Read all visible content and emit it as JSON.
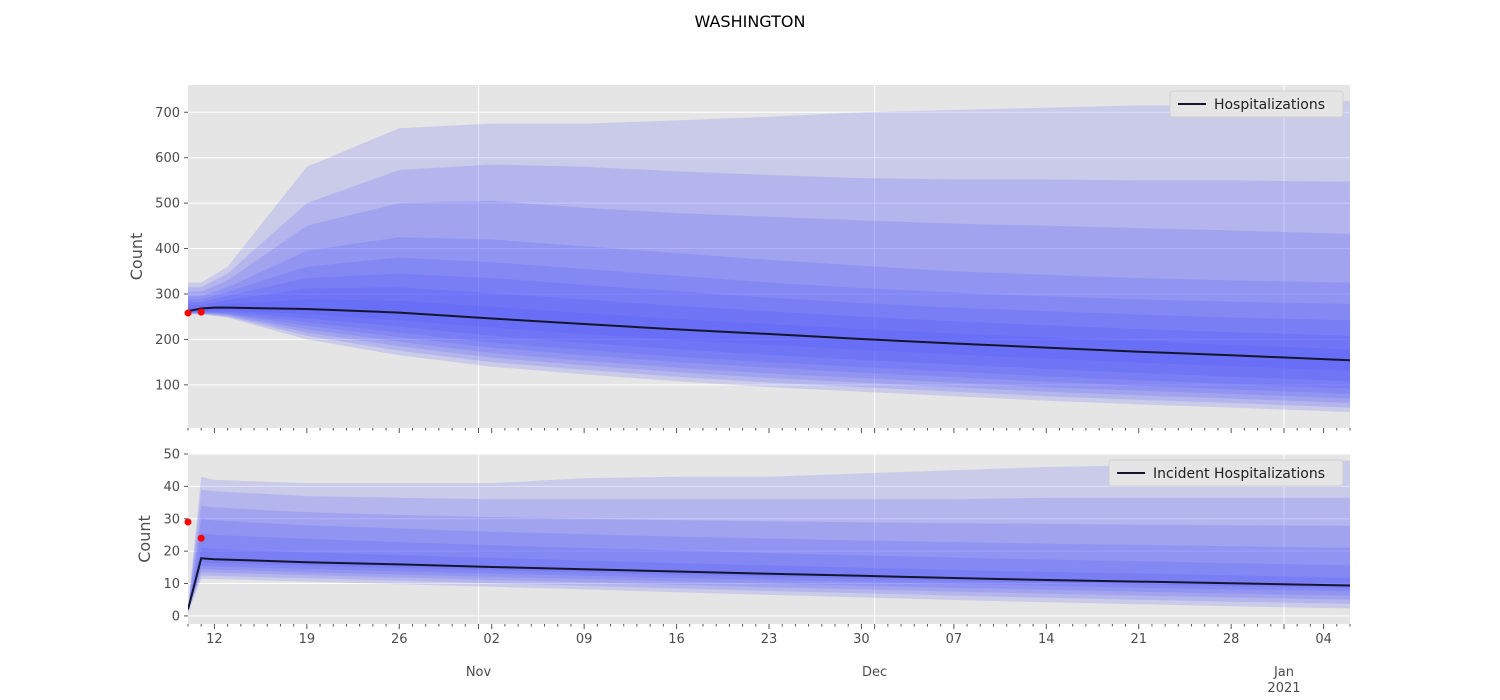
{
  "figure": {
    "title": "WASHINGTON"
  },
  "chart_data": [
    {
      "type": "area",
      "name": "hospitalizations-panel",
      "title": "",
      "xlabel": "",
      "ylabel": "Count",
      "legend": {
        "placement": "top-right",
        "entries": [
          "Hospitalizations"
        ]
      },
      "grid": true,
      "xlim": [
        "2020-10-10",
        "2021-01-06"
      ],
      "ylim": [
        5,
        760
      ],
      "yticks": [
        100,
        200,
        300,
        400,
        500,
        600,
        700
      ],
      "median": {
        "name": "Hospitalizations",
        "x": [
          "2020-10-10",
          "2020-10-11",
          "2020-10-12",
          "2020-10-13",
          "2020-10-19",
          "2020-10-26",
          "2020-11-02",
          "2020-11-09",
          "2020-11-16",
          "2020-11-23",
          "2020-11-30",
          "2020-12-07",
          "2020-12-14",
          "2020-12-21",
          "2020-12-28",
          "2021-01-06"
        ],
        "y": [
          262,
          268,
          270,
          270,
          267,
          259,
          246,
          234,
          222,
          212,
          201,
          191,
          182,
          173,
          165,
          154
        ]
      },
      "quantile_bands": [
        {
          "x": [
            "2020-10-10",
            "2020-10-11",
            "2020-10-13",
            "2020-10-19",
            "2020-10-26",
            "2020-11-02",
            "2020-11-09",
            "2020-11-16",
            "2020-11-23",
            "2020-11-30",
            "2020-12-07",
            "2020-12-14",
            "2020-12-21",
            "2020-12-28",
            "2021-01-06"
          ],
          "lower": [
            255,
            255,
            248,
            200,
            165,
            140,
            123,
            108,
            95,
            85,
            75,
            65,
            57,
            50,
            40
          ],
          "upper": [
            325,
            325,
            360,
            580,
            665,
            675,
            675,
            682,
            690,
            700,
            705,
            710,
            715,
            715,
            725
          ]
        },
        {
          "x": [
            "2020-10-10",
            "2020-10-11",
            "2020-10-13",
            "2020-10-19",
            "2020-10-26",
            "2020-11-02",
            "2020-11-09",
            "2020-11-16",
            "2020-11-23",
            "2020-11-30",
            "2020-12-07",
            "2020-12-14",
            "2020-12-21",
            "2020-12-28",
            "2021-01-06"
          ],
          "lower": [
            256,
            256,
            250,
            208,
            175,
            150,
            133,
            118,
            105,
            95,
            85,
            75,
            67,
            60,
            50
          ],
          "upper": [
            315,
            315,
            345,
            500,
            573,
            585,
            580,
            570,
            562,
            555,
            552,
            552,
            550,
            550,
            547
          ]
        },
        {
          "x": [
            "2020-10-10",
            "2020-10-11",
            "2020-10-13",
            "2020-10-19",
            "2020-10-26",
            "2020-11-02",
            "2020-11-09",
            "2020-11-16",
            "2020-11-23",
            "2020-11-30",
            "2020-12-07",
            "2020-12-14",
            "2020-12-21",
            "2020-12-28",
            "2021-01-06"
          ],
          "lower": [
            257,
            257,
            252,
            215,
            185,
            160,
            143,
            128,
            115,
            105,
            95,
            85,
            77,
            70,
            60
          ],
          "upper": [
            305,
            305,
            330,
            450,
            500,
            505,
            490,
            478,
            470,
            462,
            455,
            450,
            445,
            440,
            432
          ]
        },
        {
          "x": [
            "2020-10-10",
            "2020-10-11",
            "2020-10-13",
            "2020-10-19",
            "2020-10-26",
            "2020-11-02",
            "2020-11-09",
            "2020-11-16",
            "2020-11-23",
            "2020-11-30",
            "2020-12-07",
            "2020-12-14",
            "2020-12-21",
            "2020-12-28",
            "2021-01-06"
          ],
          "lower": [
            258,
            258,
            254,
            222,
            195,
            170,
            153,
            138,
            125,
            115,
            105,
            95,
            87,
            80,
            70
          ],
          "upper": [
            295,
            295,
            315,
            395,
            425,
            420,
            405,
            390,
            375,
            362,
            350,
            342,
            335,
            330,
            325
          ]
        },
        {
          "x": [
            "2020-10-10",
            "2020-10-11",
            "2020-10-13",
            "2020-10-19",
            "2020-10-26",
            "2020-11-02",
            "2020-11-09",
            "2020-11-16",
            "2020-11-23",
            "2020-11-30",
            "2020-12-07",
            "2020-12-14",
            "2020-12-21",
            "2020-12-28",
            "2021-01-06"
          ],
          "lower": [
            259,
            259,
            256,
            230,
            205,
            182,
            165,
            150,
            138,
            127,
            117,
            107,
            98,
            90,
            80
          ],
          "upper": [
            288,
            288,
            305,
            360,
            380,
            370,
            355,
            340,
            325,
            313,
            303,
            295,
            288,
            283,
            278
          ]
        },
        {
          "x": [
            "2020-10-10",
            "2020-10-11",
            "2020-10-13",
            "2020-10-19",
            "2020-10-26",
            "2020-11-02",
            "2020-11-09",
            "2020-11-16",
            "2020-11-23",
            "2020-11-30",
            "2020-12-07",
            "2020-12-14",
            "2020-12-21",
            "2020-12-28",
            "2021-01-06"
          ],
          "lower": [
            260,
            260,
            258,
            238,
            215,
            193,
            177,
            162,
            150,
            139,
            129,
            119,
            110,
            102,
            92
          ],
          "upper": [
            282,
            282,
            296,
            335,
            345,
            335,
            320,
            306,
            292,
            280,
            270,
            262,
            255,
            248,
            242
          ]
        },
        {
          "x": [
            "2020-10-10",
            "2020-10-11",
            "2020-10-13",
            "2020-10-19",
            "2020-10-26",
            "2020-11-02",
            "2020-11-09",
            "2020-11-16",
            "2020-11-23",
            "2020-11-30",
            "2020-12-07",
            "2020-12-14",
            "2020-12-21",
            "2020-12-28",
            "2021-01-06"
          ],
          "lower": [
            261,
            261,
            261,
            246,
            228,
            208,
            192,
            178,
            166,
            155,
            145,
            135,
            126,
            118,
            108
          ],
          "upper": [
            276,
            276,
            287,
            312,
            315,
            302,
            288,
            274,
            262,
            250,
            240,
            231,
            223,
            216,
            208
          ]
        },
        {
          "x": [
            "2020-10-10",
            "2020-10-11",
            "2020-10-13",
            "2020-10-19",
            "2020-10-26",
            "2020-11-02",
            "2020-11-09",
            "2020-11-16",
            "2020-11-23",
            "2020-11-30",
            "2020-12-07",
            "2020-12-14",
            "2020-12-21",
            "2020-12-28",
            "2021-01-06"
          ],
          "lower": [
            262,
            262,
            264,
            255,
            242,
            226,
            212,
            199,
            188,
            177,
            167,
            158,
            149,
            141,
            131
          ],
          "upper": [
            270,
            270,
            278,
            288,
            285,
            272,
            258,
            245,
            234,
            223,
            213,
            204,
            196,
            188,
            178
          ]
        }
      ],
      "observed": {
        "x": [
          "2020-10-10",
          "2020-10-11"
        ],
        "y": [
          258,
          260
        ],
        "color": "#ff0000"
      },
      "colors": {
        "median": "#15152e",
        "band": "#4a4dff",
        "background": "#e5e5e5",
        "grid": "#ffffff"
      }
    },
    {
      "type": "area",
      "name": "incident-hospitalizations-panel",
      "title": "",
      "xlabel": "",
      "ylabel": "Count",
      "legend": {
        "placement": "top-right",
        "entries": [
          "Incident Hospitalizations"
        ]
      },
      "grid": true,
      "xlim": [
        "2020-10-10",
        "2021-01-06"
      ],
      "ylim": [
        -2.5,
        50
      ],
      "yticks": [
        0,
        10,
        20,
        30,
        40,
        50
      ],
      "median": {
        "name": "Incident Hospitalizations",
        "x": [
          "2020-10-10",
          "2020-10-11",
          "2020-10-12",
          "2020-10-19",
          "2020-10-26",
          "2020-11-02",
          "2020-11-09",
          "2020-11-16",
          "2020-11-23",
          "2020-11-30",
          "2020-12-07",
          "2020-12-14",
          "2020-12-21",
          "2020-12-28",
          "2021-01-06"
        ],
        "y": [
          2,
          17.8,
          17.5,
          16.6,
          15.9,
          15.1,
          14.4,
          13.7,
          13,
          12.4,
          11.7,
          11.1,
          10.6,
          10.1,
          9.4
        ]
      },
      "quantile_bands": [
        {
          "x": [
            "2020-10-10",
            "2020-10-11",
            "2020-10-12",
            "2020-10-19",
            "2020-10-26",
            "2020-11-02",
            "2020-11-09",
            "2020-11-16",
            "2020-11-23",
            "2020-11-30",
            "2020-12-07",
            "2020-12-14",
            "2020-12-21",
            "2020-12-28",
            "2021-01-06"
          ],
          "lower": [
            1,
            11.5,
            11.4,
            10.6,
            9.8,
            9,
            8.2,
            7.3,
            6.5,
            5.7,
            4.9,
            4.2,
            3.6,
            3,
            2.3
          ],
          "upper": [
            3,
            43,
            42,
            41,
            41,
            41,
            42.5,
            43,
            43,
            44,
            45,
            46,
            46.5,
            47,
            48
          ]
        },
        {
          "x": [
            "2020-10-10",
            "2020-10-11",
            "2020-10-12",
            "2020-10-19",
            "2020-10-26",
            "2020-11-02",
            "2020-11-09",
            "2020-11-16",
            "2020-11-23",
            "2020-11-30",
            "2020-12-07",
            "2020-12-14",
            "2020-12-21",
            "2020-12-28",
            "2021-01-06"
          ],
          "lower": [
            1.2,
            12.5,
            12.4,
            11.6,
            10.9,
            10.1,
            9.3,
            8.5,
            7.7,
            7,
            6.3,
            5.6,
            5,
            4.4,
            3.7
          ],
          "upper": [
            2.8,
            39,
            38.5,
            37,
            36.5,
            36,
            36,
            36,
            36,
            36,
            36,
            36.5,
            36.5,
            36.5,
            36.5
          ]
        },
        {
          "x": [
            "2020-10-10",
            "2020-10-11",
            "2020-10-12",
            "2020-10-19",
            "2020-10-26",
            "2020-11-02",
            "2020-11-09",
            "2020-11-16",
            "2020-11-23",
            "2020-11-30",
            "2020-12-07",
            "2020-12-14",
            "2020-12-21",
            "2020-12-28",
            "2021-01-06"
          ],
          "lower": [
            1.4,
            13.5,
            13.4,
            12.6,
            11.9,
            11.1,
            10.4,
            9.6,
            8.9,
            8.2,
            7.5,
            6.9,
            6.3,
            5.7,
            5
          ],
          "upper": [
            2.6,
            34,
            33.5,
            32,
            31.2,
            30.5,
            30,
            29.6,
            29.2,
            28.9,
            28.6,
            28.4,
            28.2,
            28,
            27.8
          ]
        },
        {
          "x": [
            "2020-10-10",
            "2020-10-11",
            "2020-10-12",
            "2020-10-19",
            "2020-10-26",
            "2020-11-02",
            "2020-11-09",
            "2020-11-16",
            "2020-11-23",
            "2020-11-30",
            "2020-12-07",
            "2020-12-14",
            "2020-12-21",
            "2020-12-28",
            "2021-01-06"
          ],
          "lower": [
            1.5,
            14.5,
            14.3,
            13.5,
            12.8,
            12.1,
            11.4,
            10.7,
            10,
            9.3,
            8.7,
            8.1,
            7.5,
            6.9,
            6.3
          ],
          "upper": [
            2.5,
            30,
            29.5,
            28,
            27,
            26,
            25.2,
            24.5,
            23.9,
            23.3,
            22.8,
            22.3,
            21.9,
            21.5,
            21
          ]
        },
        {
          "x": [
            "2020-10-10",
            "2020-10-11",
            "2020-10-12",
            "2020-10-19",
            "2020-10-26",
            "2020-11-02",
            "2020-11-09",
            "2020-11-16",
            "2020-11-23",
            "2020-11-30",
            "2020-12-07",
            "2020-12-14",
            "2020-12-21",
            "2020-12-28",
            "2021-01-06"
          ],
          "lower": [
            1.6,
            15.5,
            15.3,
            14.5,
            13.8,
            13.1,
            12.4,
            11.7,
            11.1,
            10.5,
            9.9,
            9.3,
            8.7,
            8.2,
            7.6
          ],
          "upper": [
            2.4,
            25.5,
            25,
            23.8,
            22.8,
            21.8,
            21,
            20.2,
            19.4,
            18.7,
            18,
            17.4,
            16.9,
            16.3,
            15.6
          ]
        },
        {
          "x": [
            "2020-10-10",
            "2020-10-11",
            "2020-10-12",
            "2020-10-19",
            "2020-10-26",
            "2020-11-02",
            "2020-11-09",
            "2020-11-16",
            "2020-11-23",
            "2020-11-30",
            "2020-12-07",
            "2020-12-14",
            "2020-12-21",
            "2020-12-28",
            "2021-01-06"
          ],
          "lower": [
            1.8,
            16.6,
            16.3,
            15.5,
            14.8,
            14.1,
            13.4,
            12.7,
            12.1,
            11.5,
            10.8,
            10.2,
            9.7,
            9.2,
            8.5
          ],
          "upper": [
            2.2,
            21,
            20.6,
            19.6,
            18.8,
            17.9,
            17.1,
            16.3,
            15.6,
            14.9,
            14.2,
            13.6,
            13.1,
            12.5,
            11.8
          ]
        }
      ],
      "observed": {
        "x": [
          "2020-10-10",
          "2020-10-11"
        ],
        "y": [
          29,
          24
        ],
        "color": "#ff0000"
      },
      "colors": {
        "median": "#15152e",
        "band": "#4a4dff",
        "background": "#e5e5e5",
        "grid": "#ffffff"
      }
    }
  ],
  "x_axis": {
    "day_ticks": [
      {
        "date": "2020-10-12",
        "label": "12"
      },
      {
        "date": "2020-10-19",
        "label": "19"
      },
      {
        "date": "2020-10-26",
        "label": "26"
      },
      {
        "date": "2020-11-02",
        "label": "02"
      },
      {
        "date": "2020-11-09",
        "label": "09"
      },
      {
        "date": "2020-11-16",
        "label": "16"
      },
      {
        "date": "2020-11-23",
        "label": "23"
      },
      {
        "date": "2020-11-30",
        "label": "30"
      },
      {
        "date": "2020-12-07",
        "label": "07"
      },
      {
        "date": "2020-12-14",
        "label": "14"
      },
      {
        "date": "2020-12-21",
        "label": "21"
      },
      {
        "date": "2020-12-28",
        "label": "28"
      },
      {
        "date": "2021-01-04",
        "label": "04"
      }
    ],
    "month_ticks": [
      {
        "date": "2020-11-01",
        "label": "Nov",
        "sublabel": ""
      },
      {
        "date": "2020-12-01",
        "label": "Dec",
        "sublabel": ""
      },
      {
        "date": "2021-01-01",
        "label": "Jan",
        "sublabel": "2021"
      }
    ]
  }
}
